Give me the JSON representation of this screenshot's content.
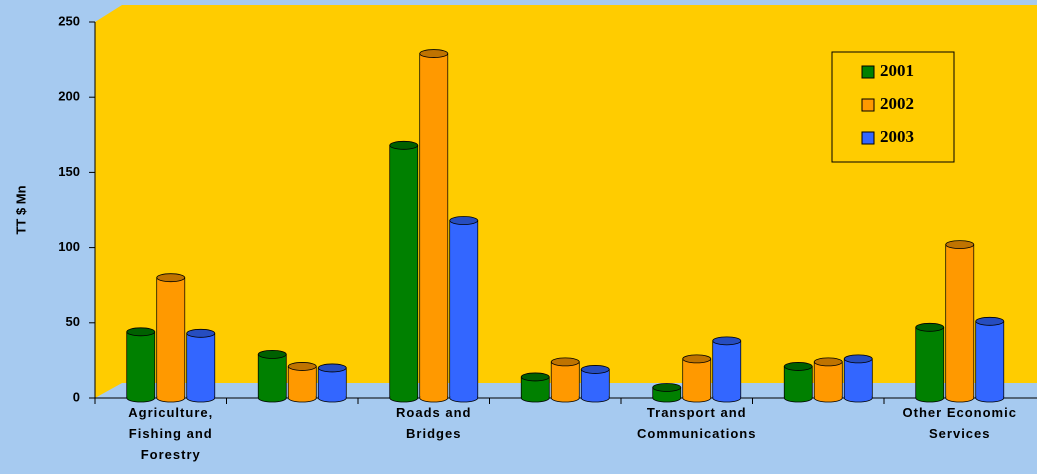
{
  "chart_data": {
    "type": "bar",
    "y_label": "TT $ Mn",
    "categories": [
      "Agriculture, Fishing and Forestry",
      null,
      "Roads and Bridges",
      null,
      "Transport and Communications",
      null,
      "Other Economic Services"
    ],
    "series": [
      {
        "name": "2001",
        "color": "#008000",
        "values": [
          44,
          29,
          168,
          14,
          7,
          21,
          47
        ]
      },
      {
        "name": "2002",
        "color": "#ff9900",
        "values": [
          80,
          21,
          229,
          24,
          26,
          24,
          102
        ]
      },
      {
        "name": "2003",
        "color": "#3366ff",
        "values": [
          43,
          20,
          118,
          19,
          38,
          26,
          51
        ]
      }
    ],
    "ylim": [
      0,
      250
    ],
    "yticks": [
      0,
      50,
      100,
      150,
      200,
      250
    ],
    "legend": "upper right"
  }
}
